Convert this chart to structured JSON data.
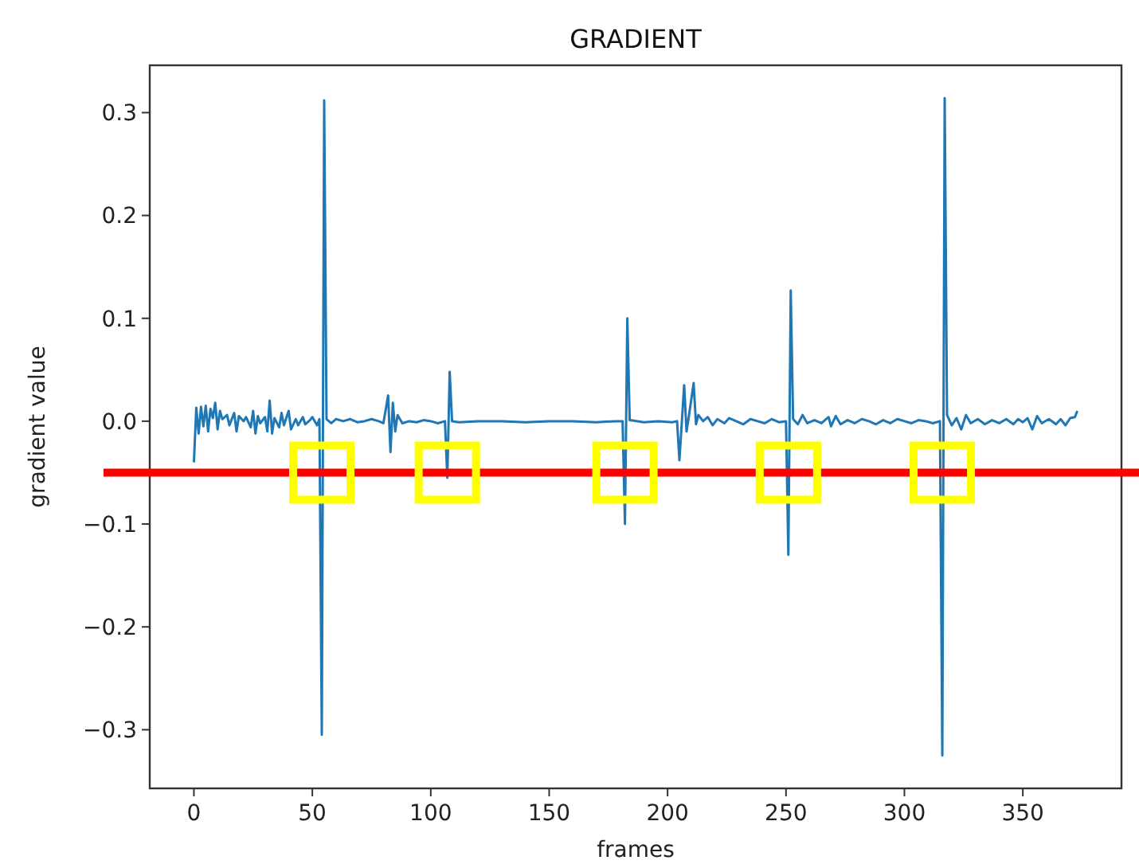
{
  "chart_data": {
    "type": "line",
    "title": "GRADIENT",
    "xlabel": "frames",
    "ylabel": "gradient value",
    "xlim": [
      -18.65,
      391.65
    ],
    "ylim": [
      -0.357,
      0.346
    ],
    "xticks": [
      0,
      50,
      100,
      150,
      200,
      250,
      300,
      350
    ],
    "yticks": [
      {
        "value": -0.3,
        "label": "−0.3"
      },
      {
        "value": -0.2,
        "label": "−0.2"
      },
      {
        "value": -0.1,
        "label": "−0.1"
      },
      {
        "value": 0,
        "label": "0.0"
      },
      0.1,
      0.2,
      0.3
    ],
    "ref_lines": [
      {
        "axis": "y",
        "value": -0.05,
        "color": "#ff0000"
      }
    ],
    "series": [
      {
        "color": "#1f77b4",
        "x": [
          0,
          1,
          2,
          3,
          4,
          5,
          6,
          7,
          8,
          9,
          10,
          11,
          12,
          14,
          15,
          17,
          18,
          19,
          21,
          22,
          24,
          25,
          26,
          27,
          28,
          30,
          31,
          32,
          33,
          34,
          36,
          37,
          38,
          40,
          41,
          43,
          44,
          46,
          47,
          49,
          50,
          52,
          53,
          54,
          55,
          56,
          58,
          60,
          63,
          66,
          69,
          72,
          75,
          78,
          80,
          82,
          83,
          84,
          85,
          86,
          88,
          91,
          94,
          97,
          100,
          103,
          106,
          107,
          108,
          109,
          112,
          120,
          130,
          140,
          150,
          160,
          170,
          178,
          181,
          182,
          183,
          184,
          190,
          196,
          202,
          204,
          205,
          207,
          208,
          209,
          211,
          212,
          213,
          215,
          217,
          219,
          221,
          224,
          226,
          229,
          232,
          235,
          238,
          241,
          244,
          247,
          250,
          251,
          252,
          253,
          255,
          257,
          259,
          262,
          265,
          268,
          269,
          271,
          273,
          276,
          279,
          282,
          285,
          288,
          291,
          294,
          297,
          300,
          303,
          306,
          309,
          312,
          315,
          316,
          317,
          318,
          320,
          322,
          324,
          326,
          328,
          331,
          334,
          337,
          340,
          343,
          346,
          348,
          350,
          352,
          354,
          356,
          358,
          361,
          364,
          366,
          368,
          370,
          372,
          373
        ],
        "values": [
          -0.04,
          0.013,
          -0.012,
          0.014,
          -0.005,
          0.015,
          -0.01,
          0.012,
          0.003,
          0.018,
          -0.008,
          0.01,
          0.002,
          0.006,
          -0.004,
          0.008,
          -0.01,
          0.005,
          0.0,
          0.004,
          -0.006,
          0.01,
          -0.012,
          0.005,
          -0.002,
          0.004,
          -0.01,
          0.02,
          -0.012,
          0.003,
          -0.006,
          0.008,
          -0.004,
          0.01,
          -0.008,
          0.002,
          -0.004,
          0.004,
          -0.003,
          0.001,
          0.004,
          -0.004,
          0.002,
          -0.305,
          0.312,
          0.002,
          -0.002,
          0.002,
          0.0,
          0.002,
          -0.001,
          0.0,
          0.002,
          0.0,
          -0.002,
          0.025,
          -0.03,
          0.018,
          -0.01,
          0.006,
          -0.002,
          0.0,
          -0.001,
          0.001,
          0.0,
          -0.002,
          0.0,
          -0.055,
          0.048,
          0.0,
          -0.001,
          0.0,
          0.0,
          -0.001,
          0.0,
          0.0,
          -0.001,
          0.0,
          0.0,
          -0.1,
          0.1,
          0.001,
          -0.001,
          0.0,
          -0.001,
          0.0,
          -0.038,
          0.035,
          -0.01,
          0.005,
          0.037,
          -0.003,
          0.006,
          0.0,
          0.004,
          -0.004,
          0.002,
          -0.002,
          0.003,
          0.0,
          -0.003,
          0.002,
          0.0,
          -0.002,
          0.002,
          -0.001,
          0.0,
          -0.13,
          0.127,
          0.002,
          -0.003,
          0.006,
          -0.002,
          0.001,
          -0.002,
          0.004,
          -0.005,
          0.005,
          -0.003,
          0.001,
          -0.002,
          0.002,
          0.0,
          -0.003,
          0.001,
          -0.002,
          0.002,
          0.0,
          -0.002,
          0.001,
          0.0,
          -0.002,
          0.0,
          -0.325,
          0.314,
          0.006,
          -0.004,
          0.003,
          -0.008,
          0.006,
          -0.002,
          0.002,
          -0.003,
          0.001,
          -0.002,
          0.002,
          -0.003,
          0.002,
          -0.001,
          0.003,
          -0.008,
          0.005,
          -0.002,
          0.002,
          -0.003,
          0.002,
          -0.004,
          0.003,
          0.004,
          0.01
        ]
      }
    ]
  }
}
